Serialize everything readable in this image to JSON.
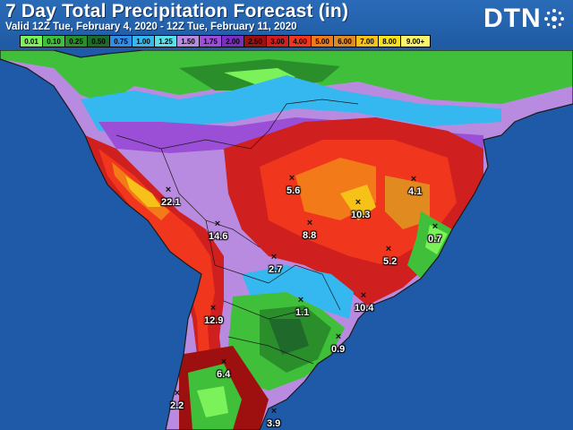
{
  "header": {
    "title": "7 Day Total Precipitation Forecast (in)",
    "subtitle": "Valid 12Z Tue, February 4, 2020 - 12Z Tue, February 11, 2020",
    "logo_text": "DTN"
  },
  "legend": {
    "items": [
      {
        "label": "0.01",
        "color": "#7cf25a"
      },
      {
        "label": "0.10",
        "color": "#3fbf3a"
      },
      {
        "label": "0.25",
        "color": "#2a8f2a"
      },
      {
        "label": "0.50",
        "color": "#1f6a2b"
      },
      {
        "label": "0.75",
        "color": "#2e8ee8"
      },
      {
        "label": "1.00",
        "color": "#35b8f0"
      },
      {
        "label": "1.25",
        "color": "#5ae0e8"
      },
      {
        "label": "1.50",
        "color": "#b98be0"
      },
      {
        "label": "1.75",
        "color": "#9a4fd6"
      },
      {
        "label": "2.00",
        "color": "#7a2ec4"
      },
      {
        "label": "2.50",
        "color": "#9e1010"
      },
      {
        "label": "3.00",
        "color": "#d01f1f"
      },
      {
        "label": "4.00",
        "color": "#f0361c"
      },
      {
        "label": "5.00",
        "color": "#f27a18"
      },
      {
        "label": "6.00",
        "color": "#e08a20"
      },
      {
        "label": "7.00",
        "color": "#f6c21a"
      },
      {
        "label": "8.00",
        "color": "#f8e21c"
      },
      {
        "label": "9.00+",
        "color": "#fbf56a"
      }
    ]
  },
  "points": [
    {
      "value": "22.1"
    },
    {
      "value": "5.6"
    },
    {
      "value": "4.1"
    },
    {
      "value": "10.3"
    },
    {
      "value": "14.6"
    },
    {
      "value": "8.8"
    },
    {
      "value": "0.7"
    },
    {
      "value": "5.2"
    },
    {
      "value": "2.7"
    },
    {
      "value": "10.4"
    },
    {
      "value": "1.1"
    },
    {
      "value": "12.9"
    },
    {
      "value": "0.9"
    },
    {
      "value": "6.4"
    },
    {
      "value": "2.2"
    },
    {
      "value": "3.9"
    }
  ],
  "colors": {
    "ocean": "#1e5aa8",
    "land_dry": "#8a8a8a",
    "border": "#1a1a1a"
  }
}
